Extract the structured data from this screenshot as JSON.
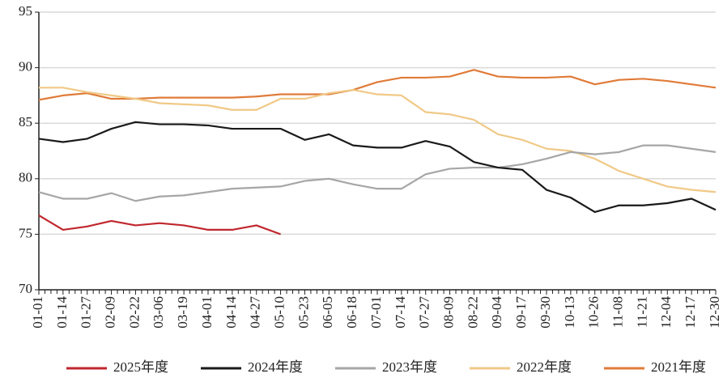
{
  "chart_data": {
    "type": "line",
    "categories": [
      "01-01",
      "01-14",
      "01-27",
      "02-09",
      "02-22",
      "03-06",
      "03-19",
      "04-01",
      "04-14",
      "04-27",
      "05-10",
      "05-23",
      "06-05",
      "06-18",
      "07-01",
      "07-14",
      "07-27",
      "08-09",
      "08-22",
      "09-04",
      "09-17",
      "09-30",
      "10-13",
      "10-26",
      "11-08",
      "11-21",
      "12-04",
      "12-17",
      "12-30"
    ],
    "series": [
      {
        "name": "2025年度",
        "color": "#c0272d",
        "values": [
          76.7,
          75.4,
          75.7,
          76.2,
          75.8,
          76.0,
          75.8,
          75.4,
          75.4,
          75.8,
          75.0,
          null,
          null,
          null,
          null,
          null,
          null,
          null,
          null,
          null,
          null,
          null,
          null,
          null,
          null,
          null,
          null,
          null,
          null
        ]
      },
      {
        "name": "2024年度",
        "color": "#1a1a1a",
        "values": [
          83.6,
          83.3,
          83.6,
          84.5,
          85.1,
          84.9,
          84.9,
          84.8,
          84.5,
          84.5,
          84.5,
          83.5,
          84.0,
          83.0,
          82.8,
          82.8,
          83.4,
          82.9,
          81.5,
          81.0,
          80.8,
          79.0,
          78.3,
          77.0,
          77.6,
          77.6,
          77.8,
          78.2,
          77.2
        ]
      },
      {
        "name": "2023年度",
        "color": "#a6a6a6",
        "values": [
          78.8,
          78.2,
          78.2,
          78.7,
          78.0,
          78.4,
          78.5,
          78.8,
          79.1,
          79.2,
          79.3,
          79.8,
          80.0,
          79.5,
          79.1,
          79.1,
          80.4,
          80.9,
          81.0,
          81.0,
          81.3,
          81.8,
          82.4,
          82.2,
          82.4,
          83.0,
          83.0,
          82.7,
          82.4
        ]
      },
      {
        "name": "2022年度",
        "color": "#f0c987",
        "values": [
          88.2,
          88.2,
          87.8,
          87.5,
          87.2,
          86.8,
          86.7,
          86.6,
          86.2,
          86.2,
          87.2,
          87.2,
          87.7,
          88.0,
          87.6,
          87.5,
          86.0,
          85.8,
          85.3,
          84.0,
          83.5,
          82.7,
          82.5,
          81.8,
          80.7,
          80.0,
          79.3,
          79.0,
          78.8
        ]
      },
      {
        "name": "2021年度",
        "color": "#e07b39",
        "values": [
          87.1,
          87.5,
          87.7,
          87.2,
          87.2,
          87.3,
          87.3,
          87.3,
          87.3,
          87.4,
          87.6,
          87.6,
          87.6,
          88.0,
          88.7,
          89.1,
          89.1,
          89.2,
          89.8,
          89.2,
          89.1,
          89.1,
          89.2,
          88.5,
          88.9,
          89.0,
          88.8,
          88.5,
          88.2
        ]
      }
    ],
    "ylim": [
      70,
      95
    ],
    "yticks": [
      70,
      75,
      80,
      85,
      90,
      95
    ],
    "grid": true
  }
}
